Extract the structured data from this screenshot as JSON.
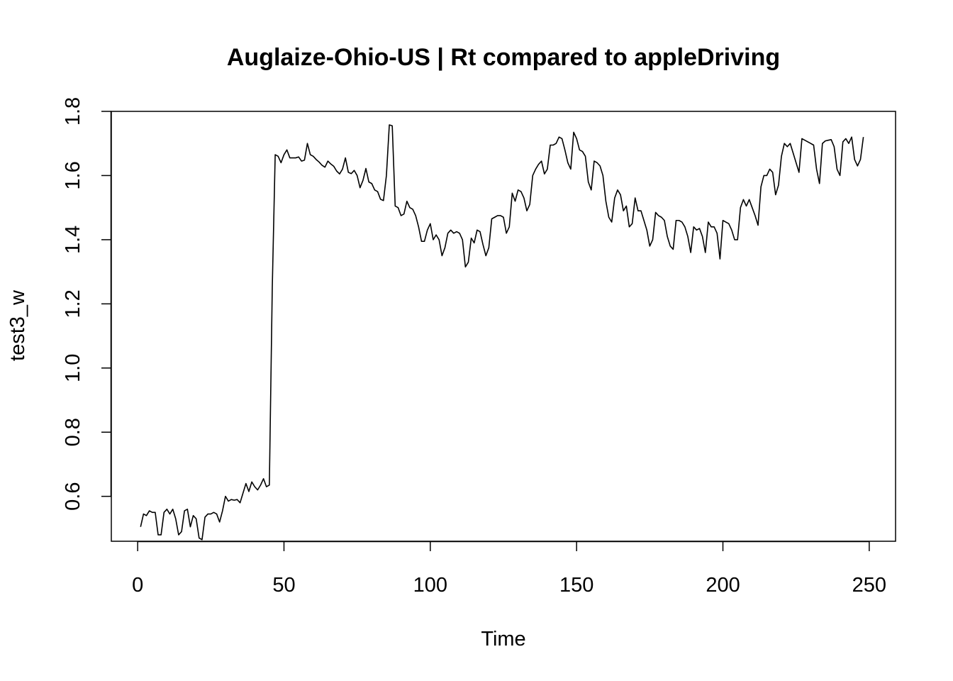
{
  "chart_data": {
    "type": "line",
    "title": "Auglaize-Ohio-US | Rt compared to appleDriving",
    "xlabel": "Time",
    "ylabel": "test3_w",
    "xlim": [
      -9,
      259
    ],
    "ylim": [
      0.46,
      1.8
    ],
    "x_ticks": [
      0,
      50,
      100,
      150,
      200,
      250
    ],
    "y_ticks": [
      0.6,
      0.8,
      1.0,
      1.2,
      1.4,
      1.6,
      1.8
    ],
    "x_tick_labels": [
      "0",
      "50",
      "100",
      "150",
      "200",
      "250"
    ],
    "y_tick_labels": [
      "0.6",
      "0.8",
      "1.0",
      "1.2",
      "1.4",
      "1.6",
      "1.8"
    ],
    "grid": false,
    "series": [
      {
        "color": "#000000",
        "x_start": 1,
        "x_step": 1,
        "values": [
          0.505,
          0.545,
          0.54,
          0.555,
          0.55,
          0.55,
          0.48,
          0.48,
          0.55,
          0.56,
          0.545,
          0.56,
          0.53,
          0.48,
          0.49,
          0.555,
          0.56,
          0.505,
          0.54,
          0.53,
          0.47,
          0.465,
          0.535,
          0.545,
          0.545,
          0.55,
          0.545,
          0.52,
          0.555,
          0.6,
          0.585,
          0.59,
          0.588,
          0.59,
          0.58,
          0.61,
          0.64,
          0.615,
          0.645,
          0.63,
          0.62,
          0.635,
          0.655,
          0.63,
          0.635,
          1.25,
          1.665,
          1.66,
          1.64,
          1.665,
          1.68,
          1.655,
          1.655,
          1.655,
          1.658,
          1.645,
          1.648,
          1.7,
          1.665,
          1.66,
          1.65,
          1.642,
          1.632,
          1.626,
          1.645,
          1.636,
          1.629,
          1.614,
          1.605,
          1.62,
          1.655,
          1.61,
          1.606,
          1.616,
          1.6,
          1.562,
          1.585,
          1.622,
          1.58,
          1.575,
          1.555,
          1.55,
          1.526,
          1.522,
          1.6,
          1.758,
          1.755,
          1.505,
          1.5,
          1.475,
          1.48,
          1.52,
          1.5,
          1.495,
          1.475,
          1.44,
          1.395,
          1.395,
          1.43,
          1.45,
          1.4,
          1.415,
          1.4,
          1.35,
          1.375,
          1.42,
          1.43,
          1.42,
          1.425,
          1.42,
          1.4,
          1.315,
          1.33,
          1.405,
          1.39,
          1.43,
          1.425,
          1.385,
          1.35,
          1.375,
          1.465,
          1.47,
          1.475,
          1.475,
          1.47,
          1.42,
          1.44,
          1.545,
          1.52,
          1.555,
          1.55,
          1.53,
          1.49,
          1.51,
          1.6,
          1.62,
          1.635,
          1.645,
          1.605,
          1.62,
          1.695,
          1.695,
          1.7,
          1.72,
          1.715,
          1.68,
          1.64,
          1.62,
          1.735,
          1.715,
          1.68,
          1.675,
          1.66,
          1.58,
          1.555,
          1.645,
          1.64,
          1.63,
          1.6,
          1.52,
          1.47,
          1.455,
          1.53,
          1.555,
          1.54,
          1.49,
          1.505,
          1.44,
          1.45,
          1.53,
          1.49,
          1.49,
          1.46,
          1.43,
          1.38,
          1.4,
          1.485,
          1.475,
          1.47,
          1.46,
          1.41,
          1.38,
          1.37,
          1.46,
          1.46,
          1.455,
          1.44,
          1.41,
          1.36,
          1.44,
          1.43,
          1.435,
          1.41,
          1.36,
          1.455,
          1.44,
          1.44,
          1.42,
          1.34,
          1.46,
          1.455,
          1.45,
          1.43,
          1.4,
          1.4,
          1.5,
          1.525,
          1.505,
          1.525,
          1.5,
          1.475,
          1.445,
          1.565,
          1.6,
          1.6,
          1.62,
          1.61,
          1.54,
          1.57,
          1.66,
          1.7,
          1.69,
          1.7,
          1.67,
          1.64,
          1.61,
          1.715,
          1.71,
          1.705,
          1.7,
          1.695,
          1.62,
          1.575,
          1.7,
          1.708,
          1.71,
          1.712,
          1.69,
          1.62,
          1.6,
          1.705,
          1.715,
          1.7,
          1.72,
          1.65,
          1.63,
          1.65,
          1.72
        ]
      }
    ]
  }
}
